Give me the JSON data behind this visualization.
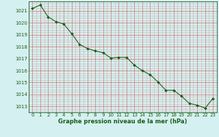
{
  "x": [
    0,
    1,
    2,
    3,
    4,
    5,
    6,
    7,
    8,
    9,
    10,
    11,
    12,
    13,
    14,
    15,
    16,
    17,
    18,
    19,
    20,
    21,
    22,
    23
  ],
  "y": [
    1021.2,
    1021.5,
    1020.5,
    1020.1,
    1019.9,
    1019.1,
    1018.2,
    1017.85,
    1017.65,
    1017.5,
    1017.05,
    1017.1,
    1017.1,
    1016.45,
    1016.0,
    1015.65,
    1015.05,
    1014.35,
    1014.35,
    1013.85,
    1013.25,
    1013.1,
    1012.85,
    1013.65
  ],
  "line_color": "#1a5c1a",
  "marker_color": "#1a5c1a",
  "bg_color": "#d5f0f0",
  "major_grid_color": "#d08080",
  "minor_grid_color": "#d0b0b0",
  "xlabel": "Graphe pression niveau de la mer (hPa)",
  "xlabel_color": "#1a5c1a",
  "ylim": [
    1012.5,
    1021.8
  ],
  "yticks": [
    1013,
    1014,
    1015,
    1016,
    1017,
    1018,
    1019,
    1020,
    1021
  ],
  "xticks": [
    0,
    1,
    2,
    3,
    4,
    5,
    6,
    7,
    8,
    9,
    10,
    11,
    12,
    13,
    14,
    15,
    16,
    17,
    18,
    19,
    20,
    21,
    22,
    23
  ],
  "xtick_labels": [
    "0",
    "1",
    "2",
    "3",
    "4",
    "5",
    "6",
    "7",
    "8",
    "9",
    "10",
    "11",
    "12",
    "13",
    "14",
    "15",
    "16",
    "17",
    "18",
    "19",
    "20",
    "21",
    "22",
    "23"
  ]
}
